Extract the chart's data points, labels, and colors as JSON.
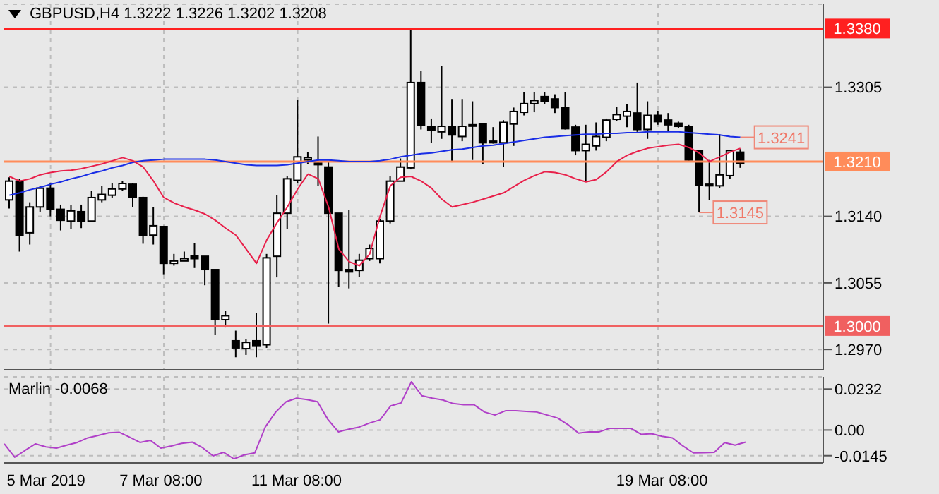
{
  "chart_data": [
    {
      "type": "candlestick",
      "title": "GBPUSD,H4 1.3222 1.3226 1.3202 1.3208",
      "categories": [
        null,
        null,
        null,
        null,
        null,
        null,
        null,
        null,
        null,
        null,
        null,
        null,
        null,
        null,
        null,
        null,
        null,
        null,
        null,
        null,
        null,
        null,
        null,
        null,
        null,
        null,
        null,
        null,
        null,
        null,
        null,
        null,
        null,
        null,
        null,
        null,
        null,
        null,
        null,
        null,
        null,
        null,
        null,
        null,
        null,
        null,
        null,
        null,
        null,
        null,
        null,
        null,
        null,
        null,
        null,
        null,
        null,
        null,
        null,
        null,
        null,
        null,
        null,
        null,
        null,
        null,
        null,
        null,
        null,
        null,
        null,
        null
      ],
      "tick_labels": "y",
      "ohlc": [
        [
          1.3161,
          1.319,
          1.315,
          1.3185
        ],
        [
          1.3185,
          1.3188,
          1.3095,
          1.3116
        ],
        [
          1.3119,
          1.3158,
          1.3104,
          1.3152
        ],
        [
          1.3152,
          1.3179,
          1.3146,
          1.3176
        ],
        [
          1.3176,
          1.3182,
          1.314,
          1.3149
        ],
        [
          1.3149,
          1.3155,
          1.3122,
          1.3135
        ],
        [
          1.3134,
          1.3155,
          1.3124,
          1.3147
        ],
        [
          1.3146,
          1.3155,
          1.3125,
          1.3134
        ],
        [
          1.3134,
          1.3173,
          1.3134,
          1.3164
        ],
        [
          1.3161,
          1.3179,
          1.3158,
          1.3168
        ],
        [
          1.3167,
          1.3182,
          1.3164,
          1.3175
        ],
        [
          1.3175,
          1.3185,
          1.3173,
          1.3182
        ],
        [
          1.3181,
          1.3182,
          1.3152,
          1.3164
        ],
        [
          1.3164,
          1.3165,
          1.3105,
          1.3116
        ],
        [
          1.3116,
          1.3152,
          1.3104,
          1.3128
        ],
        [
          1.3127,
          1.3128,
          1.3066,
          1.308
        ],
        [
          1.308,
          1.3092,
          1.3077,
          1.3083
        ],
        [
          1.3083,
          1.3095,
          1.3083,
          1.3086
        ],
        [
          1.309,
          1.3106,
          1.3074,
          1.3086
        ],
        [
          1.3089,
          1.3089,
          1.3052,
          1.3072
        ],
        [
          1.3072,
          1.3072,
          1.2989,
          1.3008
        ],
        [
          1.3008,
          1.3019,
          1.2998,
          1.3013
        ],
        [
          1.2981,
          1.2994,
          1.296,
          1.2972
        ],
        [
          1.2971,
          1.2983,
          1.2963,
          1.2979
        ],
        [
          1.2981,
          1.3017,
          1.296,
          1.2975
        ],
        [
          1.2976,
          1.3092,
          1.2972,
          1.3087
        ],
        [
          1.3089,
          1.3167,
          1.3062,
          1.3144
        ],
        [
          1.3144,
          1.3191,
          1.3124,
          1.3188
        ],
        [
          1.3186,
          1.3289,
          1.3182,
          1.3216
        ],
        [
          1.3212,
          1.3222,
          1.3207,
          1.3215
        ],
        [
          1.3208,
          1.3242,
          1.3179,
          1.3206
        ],
        [
          1.3203,
          1.3209,
          1.3003,
          1.3144
        ],
        [
          1.3144,
          1.3144,
          1.305,
          1.3071
        ],
        [
          1.3072,
          1.3148,
          1.3048,
          1.3069
        ],
        [
          1.3071,
          1.3092,
          1.3062,
          1.3084
        ],
        [
          1.3086,
          1.3104,
          1.3083,
          1.3099
        ],
        [
          1.3086,
          1.3137,
          1.308,
          1.3134
        ],
        [
          1.3134,
          1.3191,
          1.3131,
          1.3185
        ],
        [
          1.3185,
          1.3214,
          1.3185,
          1.3203
        ],
        [
          1.3202,
          1.3379,
          1.32,
          1.3311
        ],
        [
          1.3311,
          1.3326,
          1.3251,
          1.3256
        ],
        [
          1.3255,
          1.3265,
          1.3234,
          1.325
        ],
        [
          1.3248,
          1.3332,
          1.3239,
          1.3255
        ],
        [
          1.3255,
          1.329,
          1.3209,
          1.3244
        ],
        [
          1.3242,
          1.329,
          1.3236,
          1.3255
        ],
        [
          1.3257,
          1.3287,
          1.3212,
          1.3257
        ],
        [
          1.3258,
          1.3258,
          1.3207,
          1.3234
        ],
        [
          1.3236,
          1.3254,
          1.3233,
          1.3234
        ],
        [
          1.3234,
          1.3263,
          1.3203,
          1.326
        ],
        [
          1.3258,
          1.3279,
          1.323,
          1.3274
        ],
        [
          1.3273,
          1.3299,
          1.3269,
          1.3284
        ],
        [
          1.3284,
          1.3299,
          1.3273,
          1.3288
        ],
        [
          1.3293,
          1.3299,
          1.3283,
          1.3287
        ],
        [
          1.329,
          1.3296,
          1.3272,
          1.3279
        ],
        [
          1.3279,
          1.3299,
          1.3251,
          1.3252
        ],
        [
          1.3254,
          1.3257,
          1.3218,
          1.3224
        ],
        [
          1.3224,
          1.3257,
          1.3185,
          1.3232
        ],
        [
          1.323,
          1.326,
          1.3224,
          1.3242
        ],
        [
          1.3241,
          1.3265,
          1.3236,
          1.3263
        ],
        [
          1.3264,
          1.328,
          1.3262,
          1.327
        ],
        [
          1.3268,
          1.3283,
          1.3254,
          1.3274
        ],
        [
          1.3272,
          1.3311,
          1.3248,
          1.3251
        ],
        [
          1.3251,
          1.3287,
          1.3239,
          1.3269
        ],
        [
          1.3269,
          1.3275,
          1.3257,
          1.3261
        ],
        [
          1.3263,
          1.3272,
          1.3249,
          1.3257
        ],
        [
          1.3259,
          1.3261,
          1.3253,
          1.3255
        ],
        [
          1.3255,
          1.3257,
          1.3211,
          1.3212
        ],
        [
          1.3224,
          1.3224,
          1.3145,
          1.318
        ],
        [
          1.3181,
          1.3212,
          1.3161,
          1.3179
        ],
        [
          1.3179,
          1.3245,
          1.3176,
          1.3193
        ],
        [
          1.3192,
          1.3225,
          1.3188,
          1.3224
        ],
        [
          1.3222,
          1.3226,
          1.3202,
          1.3208
        ]
      ],
      "series": [
        {
          "type": "line",
          "color": "#1a2ee6",
          "values": [
            1.3167,
            1.317,
            1.3174,
            1.3177,
            1.3181,
            1.3184,
            1.3188,
            1.3191,
            1.3195,
            1.3198,
            1.3202,
            1.3205,
            1.3209,
            1.3211,
            1.3212,
            1.3213,
            1.3213,
            1.3213,
            1.3213,
            1.3213,
            1.3212,
            1.321,
            1.3208,
            1.3206,
            1.3205,
            1.3205,
            1.3205,
            1.3206,
            1.3208,
            1.321,
            1.3212,
            1.3212,
            1.3211,
            1.321,
            1.321,
            1.321,
            1.3211,
            1.3213,
            1.3216,
            1.3218,
            1.322,
            1.3221,
            1.3223,
            1.3225,
            1.3226,
            1.3228,
            1.323,
            1.3231,
            1.3233,
            1.3235,
            1.3237,
            1.3239,
            1.3241,
            1.3242,
            1.3243,
            1.3244,
            1.3245,
            1.3245,
            1.3246,
            1.3246,
            1.3247,
            1.3247,
            1.3248,
            1.3248,
            1.3248,
            1.3248,
            1.3247,
            1.3246,
            1.3245,
            1.3244,
            1.3242,
            1.3241
          ]
        },
        {
          "type": "line",
          "color": "#e8204a",
          "values": [
            1.3191,
            1.3185,
            1.3188,
            1.3193,
            1.3196,
            1.3198,
            1.3199,
            1.3201,
            1.3204,
            1.3207,
            1.3211,
            1.3215,
            1.3211,
            1.3203,
            1.3185,
            1.3164,
            1.3157,
            1.3152,
            1.3148,
            1.3143,
            1.3135,
            1.3125,
            1.3116,
            1.3098,
            1.308,
            1.311,
            1.3132,
            1.3152,
            1.3175,
            1.3194,
            1.3188,
            1.3152,
            1.3098,
            1.3082,
            1.3077,
            1.3092,
            1.314,
            1.3179,
            1.319,
            1.3191,
            1.3185,
            1.3176,
            1.3162,
            1.3152,
            1.3155,
            1.3158,
            1.3162,
            1.3166,
            1.317,
            1.3178,
            1.3186,
            1.3192,
            1.3197,
            1.3196,
            1.3193,
            1.3188,
            1.3184,
            1.3187,
            1.3197,
            1.321,
            1.3218,
            1.3223,
            1.3227,
            1.3229,
            1.3231,
            1.3232,
            1.3228,
            1.3221,
            1.321,
            1.3216,
            1.3222,
            1.3227
          ]
        }
      ],
      "ylim": [
        1.2944,
        1.3411
      ],
      "yticks": [
        1.3305,
        {
          "value": 1.314,
          "label": "1.3140"
        },
        1.3055,
        {
          "value": 1.297,
          "label": "1.2970"
        }
      ],
      "grid": true,
      "ref_lines": [
        {
          "axis": "y",
          "value": 1.338,
          "label": "1.3380",
          "color": "#ff2020"
        },
        {
          "axis": "y",
          "value": 1.321,
          "label": "1.3210",
          "color": "#ff8c5a"
        },
        {
          "axis": "y",
          "value": 1.3,
          "label": "1.3000",
          "color": "#f06060"
        }
      ],
      "annotations": [
        "1.3241",
        {
          "text": "1.3145",
          "y": 1.3145
        }
      ]
    },
    {
      "type": "line",
      "title": "Marlin -0.0068",
      "categories": [
        null,
        null,
        null,
        null,
        "5 Mar 2019",
        null,
        null,
        null,
        null,
        null,
        null,
        null,
        null,
        null,
        null,
        "7 Mar 08:00",
        null,
        null,
        null,
        null,
        null,
        null,
        null,
        null,
        null,
        null,
        null,
        null,
        "11 Mar 08:00",
        null,
        null,
        null,
        null,
        null,
        null,
        null,
        null,
        null,
        null,
        null,
        null,
        null,
        null,
        null,
        null,
        null,
        null,
        null,
        null,
        null,
        null,
        null,
        null,
        null,
        null,
        null,
        null,
        null,
        null,
        null,
        null,
        null,
        null,
        "19 Mar 08:00",
        null,
        null,
        null,
        null,
        null,
        null,
        null,
        null
      ],
      "series": [
        {
          "color": "#b040c8",
          "values": [
            -0.0078,
            -0.0154,
            -0.0115,
            -0.0078,
            -0.0095,
            -0.0102,
            -0.0085,
            -0.007,
            -0.0044,
            -0.003,
            -0.0015,
            -0.0012,
            -0.004,
            -0.007,
            -0.0058,
            -0.0102,
            -0.009,
            -0.0075,
            -0.0068,
            -0.01,
            -0.0146,
            -0.0126,
            -0.0163,
            -0.014,
            -0.0129,
            0.0017,
            0.0102,
            0.016,
            0.018,
            0.0172,
            0.016,
            0.006,
            -0.001,
            0.0005,
            0.0017,
            0.004,
            0.0058,
            0.0136,
            0.0153,
            0.0273,
            0.0194,
            0.018,
            0.017,
            0.015,
            0.0143,
            0.0143,
            0.0102,
            0.0085,
            0.0109,
            0.0109,
            0.0105,
            0.0102,
            0.0085,
            0.0068,
            0.003,
            -0.0017,
            -0.001,
            -0.001,
            0.001,
            0.001,
            0.001,
            -0.0024,
            -0.002,
            -0.0035,
            -0.0044,
            -0.009,
            -0.0129,
            -0.0128,
            -0.0126,
            -0.0071,
            -0.0085,
            -0.0068
          ]
        }
      ],
      "ylim": [
        -0.0186,
        0.0301
      ],
      "yticks": [
        0.0232,
        {
          "value": 0,
          "label": "0.00"
        },
        -0.0145
      ],
      "grid": true
    }
  ]
}
